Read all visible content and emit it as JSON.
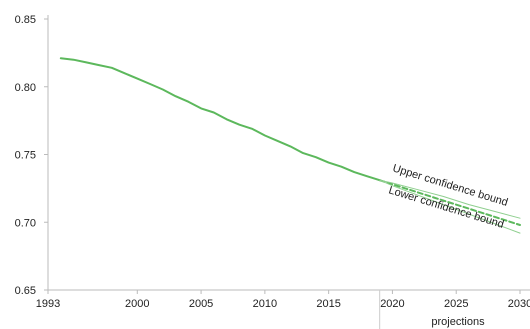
{
  "chart_data": {
    "type": "line",
    "title": "",
    "xlabel": "",
    "ylabel": "",
    "xlim": [
      1993,
      2030
    ],
    "ylim": [
      0.65,
      0.85
    ],
    "x_ticks": [
      {
        "value": 1993,
        "label": "1993"
      },
      {
        "value": 2000,
        "label": "2000"
      },
      {
        "value": 2005,
        "label": "2005"
      },
      {
        "value": 2010,
        "label": "2010"
      },
      {
        "value": 2015,
        "label": "2015"
      },
      {
        "value": 2020,
        "label": "2020"
      },
      {
        "value": 2025,
        "label": "2025"
      },
      {
        "value": 2030,
        "label": "2030"
      }
    ],
    "y_ticks": [
      {
        "value": 0.85,
        "label": "0.85"
      },
      {
        "value": 0.8,
        "label": "0.80"
      },
      {
        "value": 0.75,
        "label": "0.75"
      },
      {
        "value": 0.7,
        "label": "0.70"
      },
      {
        "value": 0.65,
        "label": "0.65"
      }
    ],
    "grid": false,
    "projection_start": 2019,
    "projection_label": "projections",
    "series": [
      {
        "style": "solid",
        "color": "#5cb85c",
        "x": [
          1994,
          1995,
          1996,
          1997,
          1998,
          1999,
          2000,
          2001,
          2002,
          2003,
          2004,
          2005,
          2006,
          2007,
          2008,
          2009,
          2010,
          2011,
          2012,
          2013,
          2014,
          2015,
          2016,
          2017,
          2018,
          2019
        ],
        "y": [
          0.821,
          0.82,
          0.818,
          0.816,
          0.814,
          0.81,
          0.806,
          0.802,
          0.798,
          0.793,
          0.789,
          0.784,
          0.781,
          0.776,
          0.772,
          0.769,
          0.764,
          0.76,
          0.756,
          0.751,
          0.748,
          0.744,
          0.741,
          0.737,
          0.734,
          0.731
        ]
      },
      {
        "style": "dashed",
        "color": "#5cb85c",
        "x": [
          2019,
          2020,
          2022,
          2024,
          2026,
          2028,
          2030
        ],
        "y": [
          0.731,
          0.728,
          0.722,
          0.716,
          0.71,
          0.704,
          0.698
        ]
      },
      {
        "name": "Upper confidence bound",
        "style": "thin",
        "color": "#8fcf8f",
        "x": [
          2019,
          2020,
          2022,
          2024,
          2026,
          2028,
          2030
        ],
        "y": [
          0.731,
          0.729,
          0.724,
          0.719,
          0.713,
          0.708,
          0.703
        ]
      },
      {
        "name": "Lower confidence bound",
        "style": "thin",
        "color": "#8fcf8f",
        "x": [
          2019,
          2020,
          2022,
          2024,
          2026,
          2028,
          2030
        ],
        "y": [
          0.731,
          0.727,
          0.72,
          0.713,
          0.706,
          0.699,
          0.692
        ]
      }
    ],
    "annotations": {
      "upper": "Upper confidence bound",
      "lower": "Lower confidence bound"
    },
    "colors": {
      "axis": "#bbbbbb",
      "divider": "#cccccc"
    }
  }
}
